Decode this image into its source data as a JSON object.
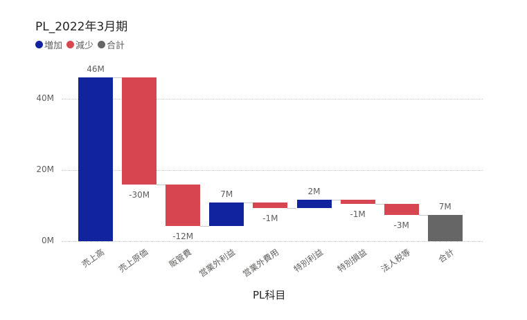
{
  "chart_data": {
    "type": "waterfall",
    "title": "PL_2022年3月期",
    "xlabel": "PL科目",
    "ylabel": "",
    "legend": [
      {
        "label": "増加",
        "color": "#12239e"
      },
      {
        "label": "減少",
        "color": "#d64550"
      },
      {
        "label": "合計",
        "color": "#666666"
      }
    ],
    "legend_position": "top-left",
    "grid": true,
    "ylim": [
      0,
      50
    ],
    "yticks": [
      "0M",
      "20M",
      "40M"
    ],
    "categories": [
      "売上高",
      "売上原価",
      "販管費",
      "営業外利益",
      "営業外費用",
      "特別利益",
      "特別損益",
      "法人税等",
      "合計"
    ],
    "values": [
      46,
      -30,
      -12,
      7,
      -1,
      2,
      -1,
      -3,
      7
    ],
    "labels": [
      "46M",
      "-30M",
      "-12M",
      "7M",
      "-1M",
      "2M",
      "-1M",
      "-3M",
      "7M"
    ],
    "kinds": [
      "inc",
      "dec",
      "dec",
      "inc",
      "dec",
      "inc",
      "dec",
      "dec",
      "total"
    ],
    "bars": [
      {
        "start": 0,
        "end": 46.0
      },
      {
        "start": 46.0,
        "end": 16.0
      },
      {
        "start": 16.0,
        "end": 4.2
      },
      {
        "start": 4.2,
        "end": 10.9
      },
      {
        "start": 10.9,
        "end": 9.4
      },
      {
        "start": 9.4,
        "end": 11.7
      },
      {
        "start": 11.7,
        "end": 10.4
      },
      {
        "start": 10.4,
        "end": 7.4
      },
      {
        "start": 0,
        "end": 7.4
      }
    ]
  }
}
